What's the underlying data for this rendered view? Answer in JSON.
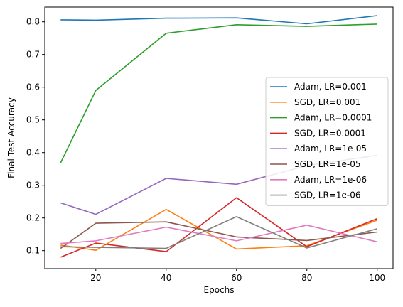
{
  "chart_data": {
    "type": "line",
    "title": "",
    "xlabel": "Epochs",
    "ylabel": "Final Test Accuracy",
    "xlim": [
      5.5,
      104.5
    ],
    "ylim": [
      0.045,
      0.845
    ],
    "xticks": [
      20,
      40,
      60,
      80,
      100
    ],
    "yticks": [
      0.1,
      0.2,
      0.3,
      0.4,
      0.5,
      0.6,
      0.7,
      0.8
    ],
    "ytick_labels": [
      "0.1",
      "0.2",
      "0.3",
      "0.4",
      "0.5",
      "0.6",
      "0.7",
      "0.8"
    ],
    "grid": false,
    "legend_position": "center-right",
    "x": [
      10,
      20,
      40,
      60,
      80,
      100
    ],
    "series": [
      {
        "name": "Adam, LR=0.001",
        "color": "#1f77b4",
        "values": [
          0.806,
          0.805,
          0.811,
          0.812,
          0.794,
          0.819
        ]
      },
      {
        "name": "SGD, LR=0.001",
        "color": "#ff7f0e",
        "values": [
          0.117,
          0.101,
          0.226,
          0.105,
          0.115,
          0.193
        ]
      },
      {
        "name": "Adam, LR=0.0001",
        "color": "#2ca02c",
        "values": [
          0.369,
          0.59,
          0.765,
          0.791,
          0.786,
          0.793
        ]
      },
      {
        "name": "SGD, LR=0.0001",
        "color": "#d62728",
        "values": [
          0.08,
          0.123,
          0.097,
          0.262,
          0.112,
          0.198
        ]
      },
      {
        "name": "Adam, LR=1e-05",
        "color": "#9467bd",
        "values": [
          0.246,
          0.211,
          0.321,
          0.303,
          0.36,
          0.392
        ]
      },
      {
        "name": "SGD, LR=1e-05",
        "color": "#8c564b",
        "values": [
          0.107,
          0.184,
          0.188,
          0.142,
          0.131,
          0.157
        ]
      },
      {
        "name": "Adam, LR=1e-06",
        "color": "#e377c2",
        "values": [
          0.122,
          0.13,
          0.172,
          0.13,
          0.178,
          0.127
        ]
      },
      {
        "name": "SGD, LR=1e-06",
        "color": "#7f7f7f",
        "values": [
          0.112,
          0.11,
          0.107,
          0.204,
          0.108,
          0.167
        ]
      }
    ]
  }
}
